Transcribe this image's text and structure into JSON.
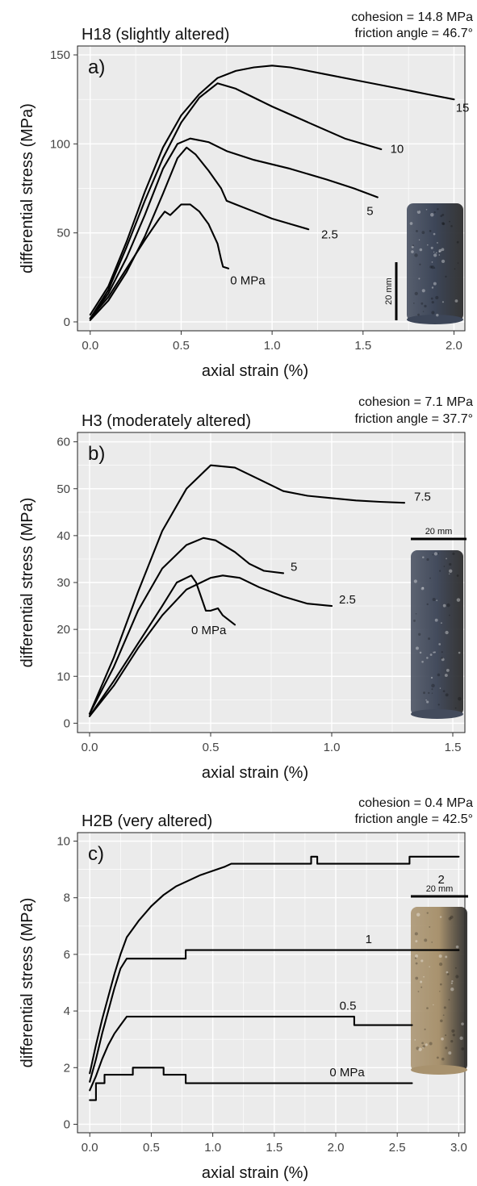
{
  "chart_data": [
    {
      "type": "line",
      "panel_label": "a)",
      "title": "H18 (slightly altered)",
      "params": [
        "cohesion = 14.8 MPa",
        "friction angle = 46.7°"
      ],
      "xlabel": "axial strain (%)",
      "ylabel": "differential stress (MPa)",
      "xlim": [
        -0.07,
        2.06
      ],
      "ylim": [
        -5,
        155
      ],
      "xticks": [
        0,
        0.5,
        1,
        1.5,
        2
      ],
      "xtick_labels": [
        "0.0",
        "0.5",
        "1.0",
        "1.5",
        "2.0"
      ],
      "yticks": [
        0,
        50,
        100,
        150
      ],
      "ytick_labels": [
        "0",
        "50",
        "100",
        "150"
      ],
      "grid": true,
      "background": "#ebebeb",
      "specimen": {
        "scale_label": "20 mm",
        "scale_orientation": "vertical",
        "color": "#3d4658"
      },
      "series": [
        {
          "label": "0 MPa",
          "label_x": 0.77,
          "label_y": 21,
          "points": [
            [
              0,
              2
            ],
            [
              0.1,
              14
            ],
            [
              0.2,
              30
            ],
            [
              0.3,
              46
            ],
            [
              0.38,
              58
            ],
            [
              0.41,
              62
            ],
            [
              0.44,
              60
            ],
            [
              0.47,
              63
            ],
            [
              0.5,
              66
            ],
            [
              0.55,
              66
            ],
            [
              0.6,
              62
            ],
            [
              0.65,
              55
            ],
            [
              0.7,
              44
            ],
            [
              0.72,
              35
            ],
            [
              0.73,
              31
            ],
            [
              0.76,
              30
            ]
          ]
        },
        {
          "label": "2.5",
          "label_x": 1.27,
          "label_y": 47,
          "points": [
            [
              0,
              1
            ],
            [
              0.1,
              12
            ],
            [
              0.2,
              28
            ],
            [
              0.3,
              48
            ],
            [
              0.4,
              72
            ],
            [
              0.48,
              92
            ],
            [
              0.53,
              98
            ],
            [
              0.58,
              94
            ],
            [
              0.65,
              85
            ],
            [
              0.72,
              75
            ],
            [
              0.75,
              68
            ],
            [
              0.8,
              66
            ],
            [
              0.9,
              62
            ],
            [
              1.0,
              58
            ],
            [
              1.1,
              55
            ],
            [
              1.2,
              52
            ]
          ]
        },
        {
          "label": "5",
          "label_x": 1.52,
          "label_y": 60,
          "points": [
            [
              0,
              2
            ],
            [
              0.1,
              16
            ],
            [
              0.2,
              36
            ],
            [
              0.3,
              60
            ],
            [
              0.4,
              86
            ],
            [
              0.48,
              100
            ],
            [
              0.55,
              103
            ],
            [
              0.65,
              101
            ],
            [
              0.75,
              96
            ],
            [
              0.9,
              91
            ],
            [
              1.1,
              86
            ],
            [
              1.3,
              80
            ],
            [
              1.45,
              75
            ],
            [
              1.58,
              70
            ]
          ]
        },
        {
          "label": "10",
          "label_x": 1.65,
          "label_y": 95,
          "points": [
            [
              0,
              2
            ],
            [
              0.1,
              18
            ],
            [
              0.2,
              42
            ],
            [
              0.3,
              68
            ],
            [
              0.4,
              92
            ],
            [
              0.5,
              112
            ],
            [
              0.6,
              126
            ],
            [
              0.7,
              134
            ],
            [
              0.8,
              131
            ],
            [
              0.9,
              126
            ],
            [
              1.0,
              121
            ],
            [
              1.2,
              112
            ],
            [
              1.4,
              103
            ],
            [
              1.6,
              97
            ]
          ]
        },
        {
          "label": "15",
          "label_x": 2.01,
          "label_y": 118,
          "points": [
            [
              0,
              4
            ],
            [
              0.1,
              20
            ],
            [
              0.2,
              45
            ],
            [
              0.3,
              73
            ],
            [
              0.4,
              98
            ],
            [
              0.5,
              116
            ],
            [
              0.6,
              128
            ],
            [
              0.7,
              137
            ],
            [
              0.8,
              141
            ],
            [
              0.9,
              143
            ],
            [
              1.0,
              144
            ],
            [
              1.1,
              143
            ],
            [
              1.3,
              139
            ],
            [
              1.5,
              135
            ],
            [
              1.7,
              131
            ],
            [
              1.85,
              128
            ],
            [
              2.0,
              125
            ]
          ]
        }
      ]
    },
    {
      "type": "line",
      "panel_label": "b)",
      "title": "H3 (moderately altered)",
      "params": [
        "cohesion = 7.1 MPa",
        "friction angle = 37.7°"
      ],
      "xlabel": "axial strain (%)",
      "ylabel": "differential stress (MPa)",
      "xlim": [
        -0.05,
        1.55
      ],
      "ylim": [
        -2,
        62
      ],
      "xticks": [
        0,
        0.5,
        1,
        1.5
      ],
      "xtick_labels": [
        "0.0",
        "0.5",
        "1.0",
        "1.5"
      ],
      "yticks": [
        0,
        10,
        20,
        30,
        40,
        50,
        60
      ],
      "ytick_labels": [
        "0",
        "10",
        "20",
        "30",
        "40",
        "50",
        "60"
      ],
      "grid": true,
      "background": "#ebebeb",
      "specimen": {
        "scale_label": "20 mm",
        "scale_orientation": "horizontal",
        "color": "#434b5c"
      },
      "series": [
        {
          "label": "0 MPa",
          "label_x": 0.42,
          "label_y": 19,
          "points": [
            [
              0,
              1.5
            ],
            [
              0.1,
              9
            ],
            [
              0.2,
              17
            ],
            [
              0.3,
              25
            ],
            [
              0.36,
              30
            ],
            [
              0.4,
              31
            ],
            [
              0.42,
              31.5
            ],
            [
              0.44,
              30
            ],
            [
              0.46,
              27
            ],
            [
              0.48,
              24
            ],
            [
              0.5,
              24
            ],
            [
              0.53,
              24.5
            ],
            [
              0.55,
              23
            ],
            [
              0.6,
              21
            ]
          ]
        },
        {
          "label": "2.5",
          "label_x": 1.03,
          "label_y": 25.5,
          "points": [
            [
              0,
              1.5
            ],
            [
              0.1,
              8
            ],
            [
              0.2,
              16
            ],
            [
              0.3,
              23
            ],
            [
              0.4,
              28.5
            ],
            [
              0.5,
              31
            ],
            [
              0.55,
              31.5
            ],
            [
              0.62,
              31
            ],
            [
              0.7,
              29
            ],
            [
              0.8,
              27
            ],
            [
              0.9,
              25.5
            ],
            [
              1.0,
              25
            ]
          ]
        },
        {
          "label": "5",
          "label_x": 0.83,
          "label_y": 32.5,
          "points": [
            [
              0,
              2
            ],
            [
              0.1,
              12
            ],
            [
              0.2,
              24
            ],
            [
              0.3,
              33
            ],
            [
              0.4,
              38
            ],
            [
              0.47,
              39.5
            ],
            [
              0.52,
              39
            ],
            [
              0.6,
              36.5
            ],
            [
              0.66,
              34
            ],
            [
              0.72,
              32.5
            ],
            [
              0.8,
              32
            ]
          ]
        },
        {
          "label": "7.5",
          "label_x": 1.34,
          "label_y": 47.5,
          "points": [
            [
              0,
              2
            ],
            [
              0.1,
              14
            ],
            [
              0.2,
              28
            ],
            [
              0.3,
              41
            ],
            [
              0.4,
              50
            ],
            [
              0.5,
              55
            ],
            [
              0.6,
              54.5
            ],
            [
              0.7,
              52
            ],
            [
              0.8,
              49.5
            ],
            [
              0.9,
              48.5
            ],
            [
              1.0,
              48
            ],
            [
              1.1,
              47.5
            ],
            [
              1.2,
              47.2
            ],
            [
              1.3,
              47
            ]
          ]
        }
      ]
    },
    {
      "type": "line",
      "panel_label": "c)",
      "title": "H2B (very altered)",
      "params": [
        "cohesion = 0.4 MPa",
        "friction angle = 42.5°"
      ],
      "xlabel": "axial strain (%)",
      "ylabel": "differential stress (MPa)",
      "xlim": [
        -0.1,
        3.05
      ],
      "ylim": [
        -0.3,
        10.3
      ],
      "xticks": [
        0,
        0.5,
        1,
        1.5,
        2,
        2.5,
        3
      ],
      "xtick_labels": [
        "0.0",
        "0.5",
        "1.0",
        "1.5",
        "2.0",
        "2.5",
        "3.0"
      ],
      "yticks": [
        0,
        2,
        4,
        6,
        8,
        10
      ],
      "ytick_labels": [
        "0",
        "2",
        "4",
        "6",
        "8",
        "10"
      ],
      "grid": true,
      "background": "#ebebeb",
      "specimen": {
        "scale_label": "20 mm",
        "scale_orientation": "horizontal",
        "color": "#a8926e"
      },
      "series": [
        {
          "label": "0 MPa",
          "label_x": 1.95,
          "label_y": 1.7,
          "step": true,
          "points": [
            [
              0,
              0.85
            ],
            [
              0.05,
              0.85
            ],
            [
              0.05,
              1.45
            ],
            [
              0.12,
              1.45
            ],
            [
              0.12,
              1.75
            ],
            [
              0.35,
              1.75
            ],
            [
              0.35,
              2.0
            ],
            [
              0.6,
              2.0
            ],
            [
              0.6,
              1.75
            ],
            [
              0.78,
              1.75
            ],
            [
              0.78,
              1.45
            ],
            [
              2.62,
              1.45
            ]
          ]
        },
        {
          "label": "0.5",
          "label_x": 2.03,
          "label_y": 4.05,
          "step": true,
          "points": [
            [
              0,
              1.2
            ],
            [
              0.05,
              1.7
            ],
            [
              0.1,
              2.3
            ],
            [
              0.15,
              2.8
            ],
            [
              0.2,
              3.2
            ],
            [
              0.25,
              3.5
            ],
            [
              0.3,
              3.8
            ],
            [
              2.15,
              3.8
            ],
            [
              2.15,
              3.5
            ],
            [
              2.62,
              3.5
            ]
          ]
        },
        {
          "label": "1",
          "label_x": 2.24,
          "label_y": 6.4,
          "step": true,
          "points": [
            [
              0,
              1.5
            ],
            [
              0.05,
              2.3
            ],
            [
              0.1,
              3.2
            ],
            [
              0.15,
              4.0
            ],
            [
              0.2,
              4.8
            ],
            [
              0.25,
              5.5
            ],
            [
              0.3,
              5.85
            ],
            [
              0.78,
              5.85
            ],
            [
              0.78,
              6.15
            ],
            [
              3.0,
              6.15
            ]
          ]
        },
        {
          "label": "2",
          "label_x": 2.83,
          "label_y": 8.5,
          "step": true,
          "points": [
            [
              0,
              1.8
            ],
            [
              0.05,
              2.8
            ],
            [
              0.1,
              3.7
            ],
            [
              0.15,
              4.5
            ],
            [
              0.2,
              5.3
            ],
            [
              0.25,
              6.0
            ],
            [
              0.3,
              6.6
            ],
            [
              0.4,
              7.2
            ],
            [
              0.5,
              7.7
            ],
            [
              0.6,
              8.1
            ],
            [
              0.7,
              8.4
            ],
            [
              0.8,
              8.6
            ],
            [
              0.9,
              8.8
            ],
            [
              1.0,
              8.95
            ],
            [
              1.1,
              9.1
            ],
            [
              1.15,
              9.2
            ],
            [
              1.8,
              9.2
            ],
            [
              1.8,
              9.45
            ],
            [
              1.85,
              9.45
            ],
            [
              1.85,
              9.2
            ],
            [
              2.6,
              9.2
            ],
            [
              2.6,
              9.45
            ],
            [
              3.0,
              9.45
            ]
          ]
        }
      ]
    }
  ]
}
